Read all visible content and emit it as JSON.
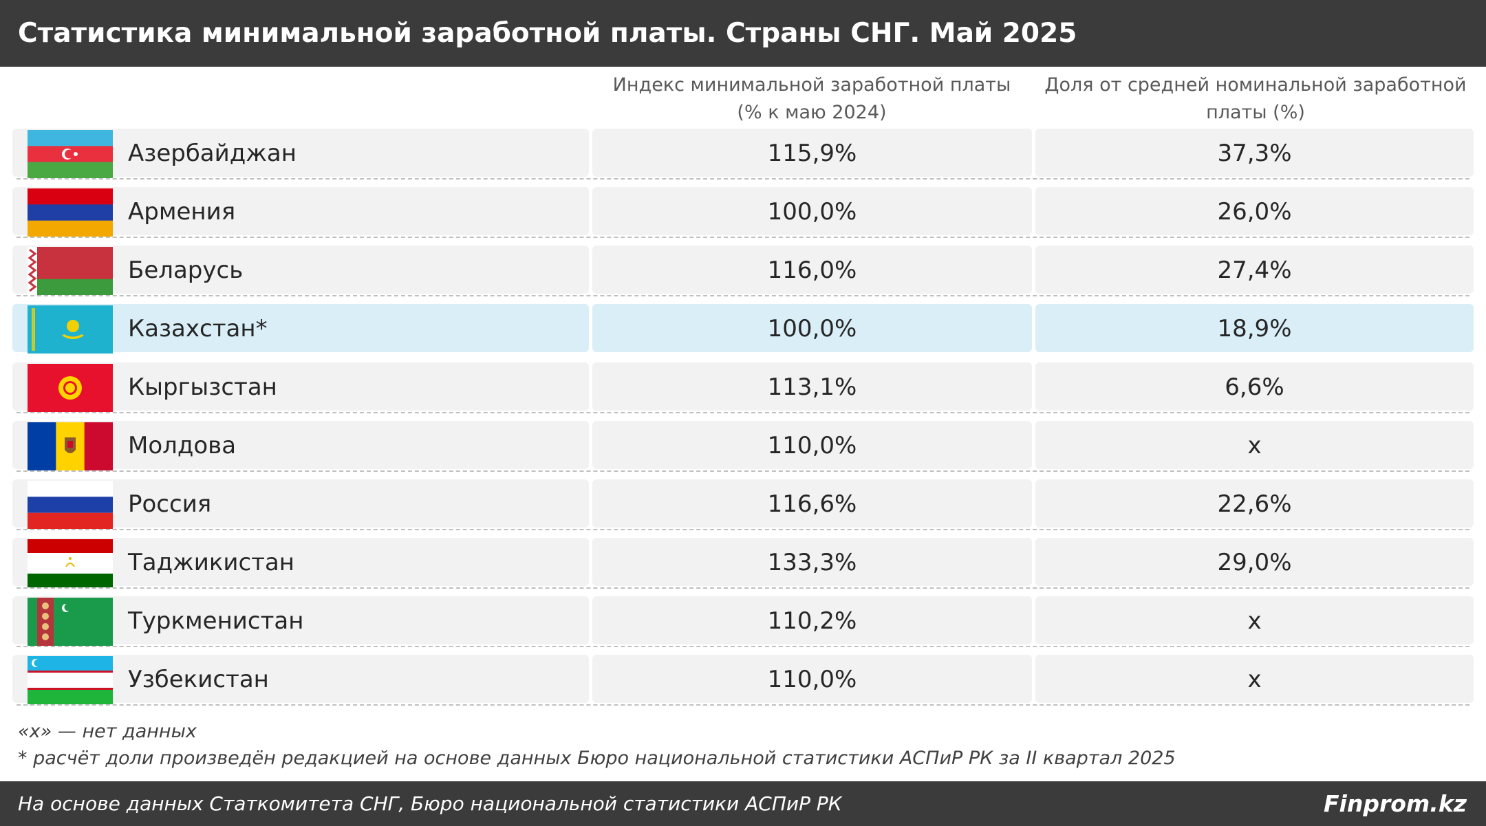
{
  "title": "Статистика минимальной заработной платы. Страны СНГ. Май 2025",
  "columns": {
    "index_line1": "Индекс минимальной заработной платы",
    "index_line2": "(% к маю 2024)",
    "share_line1": "Доля от средней номинальной заработной",
    "share_line2": "платы (%)"
  },
  "rows": [
    {
      "flag_icon": "azerbaijan-flag-icon",
      "country": "Азербайджан",
      "index": "115,9%",
      "share": "37,3%"
    },
    {
      "flag_icon": "armenia-flag-icon",
      "country": "Армения",
      "index": "100,0%",
      "share": "26,0%"
    },
    {
      "flag_icon": "belarus-flag-icon",
      "country": "Беларусь",
      "index": "116,0%",
      "share": "27,4%"
    },
    {
      "flag_icon": "kazakhstan-flag-icon",
      "country": "Казахстан*",
      "index": "100,0%",
      "share": "18,9%",
      "highlight": true
    },
    {
      "flag_icon": "kyrgyzstan-flag-icon",
      "country": "Кыргызстан",
      "index": "113,1%",
      "share": "6,6%"
    },
    {
      "flag_icon": "moldova-flag-icon",
      "country": "Молдова",
      "index": "110,0%",
      "share": "x"
    },
    {
      "flag_icon": "russia-flag-icon",
      "country": "Россия",
      "index": "116,6%",
      "share": "22,6%"
    },
    {
      "flag_icon": "tajikistan-flag-icon",
      "country": "Таджикистан",
      "index": "133,3%",
      "share": "29,0%"
    },
    {
      "flag_icon": "turkmenistan-flag-icon",
      "country": "Туркменистан",
      "index": "110,2%",
      "share": "x"
    },
    {
      "flag_icon": "uzbekistan-flag-icon",
      "country": "Узбекистан",
      "index": "110,0%",
      "share": "x"
    }
  ],
  "notes": {
    "note1": "«x» — нет данных",
    "note2": "* расчёт доли произведён редакцией на основе данных Бюро национальной статистики АСПиР РК за II квартал 2025"
  },
  "footer": {
    "source": "На основе данных Статкомитета СНГ, Бюро национальной статистики АСПиР РК",
    "brand": "Finprom.kz"
  },
  "colors": {
    "header_bg": "#3b3b3b",
    "row_bg": "#f2f2f2",
    "highlight_bg": "#d9eef7"
  },
  "chart_data": {
    "type": "table",
    "title": "Статистика минимальной заработной платы. Страны СНГ. Май 2025",
    "columns": [
      "Индекс минимальной заработной платы (% к маю 2024)",
      "Доля от средней номинальной заработной платы (%)"
    ],
    "rows": [
      {
        "country": "Азербайджан",
        "index": 115.9,
        "share": 37.3
      },
      {
        "country": "Армения",
        "index": 100.0,
        "share": 26.0
      },
      {
        "country": "Беларусь",
        "index": 116.0,
        "share": 27.4
      },
      {
        "country": "Казахстан*",
        "index": 100.0,
        "share": 18.9
      },
      {
        "country": "Кыргызстан",
        "index": 113.1,
        "share": 6.6
      },
      {
        "country": "Молдова",
        "index": 110.0,
        "share": null
      },
      {
        "country": "Россия",
        "index": 116.6,
        "share": 22.6
      },
      {
        "country": "Таджикистан",
        "index": 133.3,
        "share": 29.0
      },
      {
        "country": "Туркменистан",
        "index": 110.2,
        "share": null
      },
      {
        "country": "Узбекистан",
        "index": 110.0,
        "share": null
      }
    ]
  }
}
